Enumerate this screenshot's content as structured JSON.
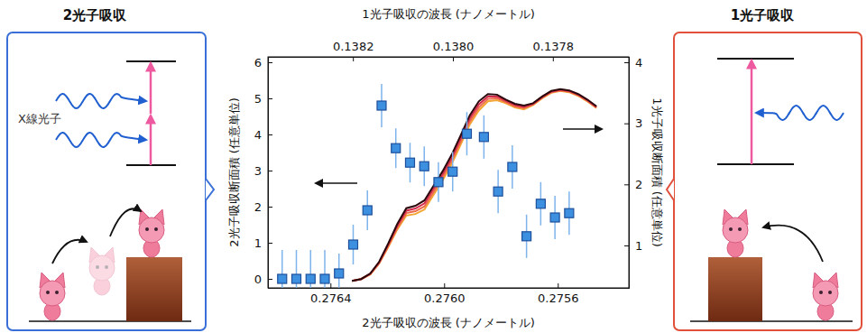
{
  "chart_data": {
    "type": "scatter",
    "x_label": "2光子吸収の波長 (ナノメートル)",
    "x2_label": "1光子吸収の波長 (ナノメートル)",
    "y_label": "2光子吸収断面積 (任意単位)",
    "y2_label": "1光子吸収断面積 (任意単位)",
    "xlim": [
      0.27662,
      0.27535
    ],
    "xticks": [
      0.2764,
      {
        "value": 0.276,
        "label": "0.2760"
      },
      0.2756
    ],
    "x2lim": [
      0.13837,
      0.137648
    ],
    "x2ticks": [
      0.1382,
      {
        "value": 0.138,
        "label": "0.1380"
      },
      0.1378
    ],
    "ylim": [
      -0.25,
      6.15
    ],
    "yticks": [
      0,
      1,
      2,
      3,
      4,
      5,
      6
    ],
    "y2lim": [
      0.305,
      4.089
    ],
    "y2ticks": [
      1,
      2,
      3,
      4
    ],
    "grid": false,
    "series": [
      {
        "type": "scatter",
        "marker": "square",
        "color": "#3d8fe0",
        "x": [
          0.27657,
          0.27652,
          0.27647,
          0.27642,
          0.27637,
          0.27632,
          0.27627,
          0.27622,
          0.27617,
          0.27612,
          0.27607,
          0.27602,
          0.27597,
          0.27592,
          0.27586,
          0.27581,
          0.27576,
          0.27571,
          0.27566,
          0.27561,
          0.27556
        ],
        "values": [
          0,
          0,
          0,
          0,
          0.15,
          0.95,
          1.9,
          4.8,
          3.62,
          3.22,
          3.12,
          2.68,
          2.97,
          4.02,
          3.93,
          2.42,
          3.1,
          1.18,
          2.08,
          1.7,
          1.82
        ],
        "errors": [
          0.8,
          0.8,
          0.8,
          0.8,
          0.55,
          0.55,
          0.55,
          0.6,
          0.55,
          0.55,
          0.55,
          0.55,
          0.55,
          0.6,
          0.6,
          0.6,
          0.6,
          0.6,
          0.6,
          0.6,
          0.6
        ]
      },
      {
        "type": "line",
        "axis": "y2",
        "color": "#f2a531",
        "x": [
          0.276324,
          0.276292,
          0.27626,
          0.276229,
          0.276197,
          0.276165,
          0.276133,
          0.276101,
          0.276069,
          0.276037,
          0.276006,
          0.275974,
          0.275942,
          0.27591,
          0.275878,
          0.275846,
          0.275814,
          0.275783,
          0.275751,
          0.275719,
          0.275687,
          0.275655,
          0.275623,
          0.275591,
          0.27556,
          0.275528,
          0.275496,
          0.275464
        ],
        "values": [
          0.42,
          0.45,
          0.525,
          0.7,
          0.97,
          1.26,
          1.49,
          1.515,
          1.59,
          1.83,
          2.06,
          2.33,
          2.65,
          2.98,
          3.21,
          3.36,
          3.38,
          3.33,
          3.26,
          3.23,
          3.3,
          3.41,
          3.5,
          3.53,
          3.51,
          3.45,
          3.36,
          3.25
        ]
      },
      {
        "type": "line",
        "axis": "y2",
        "color": "#ec6a4a",
        "x": [
          0.276324,
          0.276292,
          0.27626,
          0.276229,
          0.276197,
          0.276165,
          0.276133,
          0.276101,
          0.276069,
          0.276037,
          0.276006,
          0.275974,
          0.275942,
          0.27591,
          0.275878,
          0.275846,
          0.275814,
          0.275783,
          0.275751,
          0.275719,
          0.275687,
          0.275655,
          0.275623,
          0.275591,
          0.27556,
          0.275528,
          0.275496,
          0.275464
        ],
        "values": [
          0.42,
          0.45,
          0.53,
          0.71,
          0.99,
          1.29,
          1.53,
          1.56,
          1.64,
          1.88,
          2.11,
          2.38,
          2.7,
          3.03,
          3.26,
          3.4,
          3.41,
          3.35,
          3.28,
          3.25,
          3.31,
          3.42,
          3.51,
          3.54,
          3.52,
          3.46,
          3.37,
          3.26
        ]
      },
      {
        "type": "line",
        "axis": "y2",
        "color": "#d42a4a",
        "x": [
          0.276324,
          0.276292,
          0.27626,
          0.276229,
          0.276197,
          0.276165,
          0.276133,
          0.276101,
          0.276069,
          0.276037,
          0.276006,
          0.275974,
          0.275942,
          0.27591,
          0.275878,
          0.275846,
          0.275814,
          0.275783,
          0.275751,
          0.275719,
          0.275687,
          0.275655,
          0.275623,
          0.275591,
          0.27556,
          0.275528,
          0.275496,
          0.275464
        ],
        "values": [
          0.42,
          0.45,
          0.535,
          0.72,
          1.01,
          1.32,
          1.57,
          1.605,
          1.69,
          1.93,
          2.16,
          2.43,
          2.75,
          3.08,
          3.31,
          3.44,
          3.44,
          3.37,
          3.3,
          3.27,
          3.32,
          3.43,
          3.52,
          3.55,
          3.53,
          3.47,
          3.38,
          3.27
        ]
      },
      {
        "type": "line",
        "axis": "y2",
        "color": "#2a080c",
        "x": [
          0.276324,
          0.276292,
          0.27626,
          0.276229,
          0.276197,
          0.276165,
          0.276133,
          0.276101,
          0.276069,
          0.276037,
          0.276006,
          0.275974,
          0.275942,
          0.27591,
          0.275878,
          0.275846,
          0.275814,
          0.275783,
          0.275751,
          0.275719,
          0.275687,
          0.275655,
          0.275623,
          0.275591,
          0.27556,
          0.275528,
          0.275496,
          0.275464
        ],
        "values": [
          0.42,
          0.45,
          0.54,
          0.73,
          1.03,
          1.35,
          1.61,
          1.65,
          1.74,
          1.98,
          2.21,
          2.48,
          2.8,
          3.13,
          3.36,
          3.48,
          3.47,
          3.39,
          3.32,
          3.29,
          3.33,
          3.44,
          3.53,
          3.56,
          3.54,
          3.48,
          3.39,
          3.28
        ]
      }
    ]
  },
  "panels": [
    {
      "title": "2光子吸収",
      "label": "X線光子"
    },
    {
      "title": "1光子吸収"
    }
  ]
}
